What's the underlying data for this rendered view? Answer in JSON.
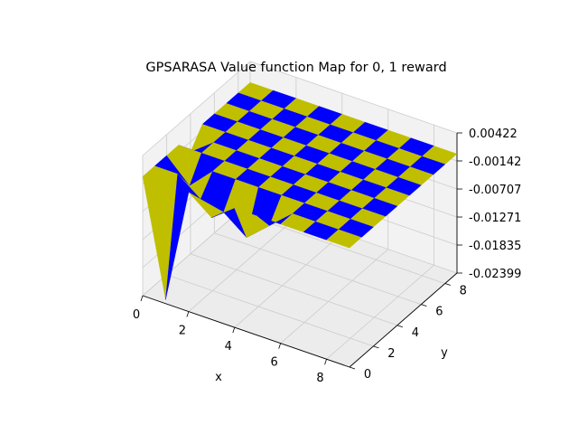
{
  "chart_data": {
    "type": "surface3d",
    "title": "GPSARASA Value function Map for 0, 1 reward",
    "xlabel": "x",
    "ylabel": "y",
    "zlabel": "",
    "x_ticks": [
      "0",
      "2",
      "4",
      "6",
      "8"
    ],
    "y_ticks": [
      "0",
      "2",
      "4",
      "6",
      "8"
    ],
    "z_ticks": [
      "0.00422",
      "-0.00142",
      "-0.00707",
      "-0.01271",
      "-0.01835",
      "-0.02399"
    ],
    "xlim": [
      0,
      9
    ],
    "ylim": [
      0,
      9
    ],
    "zlim": [
      -0.02399,
      0.00422
    ],
    "colors": {
      "face_a": "#0000ff",
      "face_b": "#bfbf00",
      "pane": "#f2f2f2",
      "grid": "#cccccc"
    },
    "grid": true,
    "z": [
      [
        0.0,
        0.0,
        0.0,
        0.0,
        -0.0035,
        0.0,
        0.0,
        0.0,
        0.0,
        0.0
      ],
      [
        -0.0232,
        0.0,
        -0.0045,
        0.0,
        0.0,
        0.0,
        0.0,
        0.0,
        0.0,
        0.0
      ],
      [
        0.0,
        -0.0035,
        0.0,
        0.0,
        0.0,
        0.0,
        0.0,
        0.0,
        0.0,
        0.0
      ],
      [
        -0.0035,
        -0.0045,
        0.0,
        0.0,
        0.0,
        0.0,
        0.0,
        0.0,
        0.0,
        0.0
      ],
      [
        0.0,
        -0.008,
        0.0,
        0.0,
        0.0,
        0.0,
        0.0,
        0.0,
        0.0,
        0.0
      ],
      [
        0.0,
        -0.004,
        0.0,
        0.0,
        0.0,
        0.0,
        0.0,
        0.0,
        0.0,
        0.0
      ],
      [
        0.0,
        0.0,
        0.0,
        0.0,
        0.0,
        0.0,
        0.0,
        0.0,
        0.0,
        0.0
      ],
      [
        0.0,
        0.0,
        0.0,
        0.0,
        0.0,
        0.0,
        0.0,
        0.0,
        0.0,
        0.0
      ],
      [
        0.0,
        0.0,
        0.0,
        0.0,
        0.0,
        0.0,
        0.0,
        0.0,
        0.0,
        0.0
      ],
      [
        0.0,
        0.0,
        0.0,
        0.0,
        0.0,
        0.0,
        0.0,
        0.0,
        0.0,
        0.0
      ]
    ]
  }
}
